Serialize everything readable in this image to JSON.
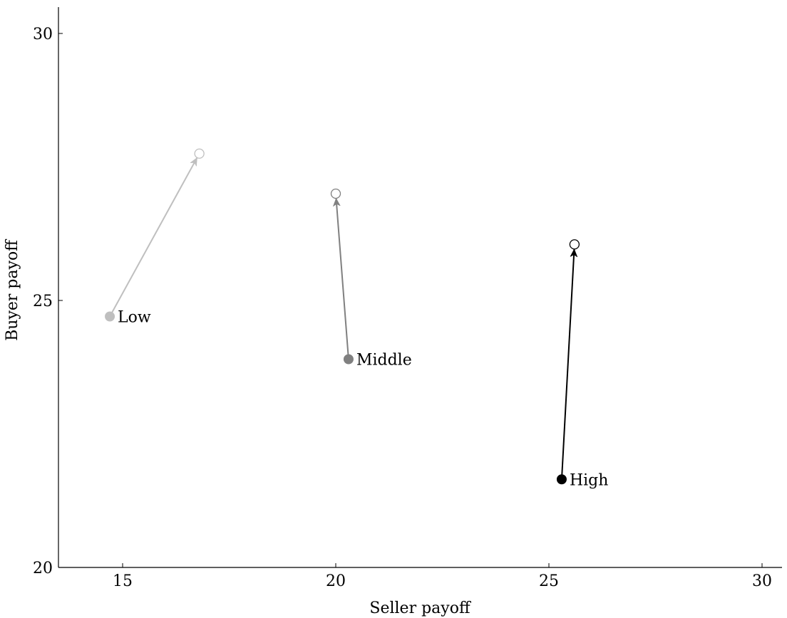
{
  "chart_data": {
    "type": "scatter",
    "xlabel": "Seller payoff",
    "ylabel": "Buyer payoff",
    "xlim": [
      13.5,
      30.5
    ],
    "ylim": [
      20,
      30.5
    ],
    "x_ticks": [
      15,
      20,
      25,
      30
    ],
    "y_ticks": [
      20,
      25,
      30
    ],
    "x_tick_labels": [
      "15",
      "20",
      "25",
      "30"
    ],
    "y_tick_labels": [
      "20",
      "25",
      "30"
    ],
    "grid": false,
    "series": [
      {
        "name": "Low",
        "color": "#bfbfbf",
        "start": {
          "x": 14.7,
          "y": 24.7
        },
        "end": {
          "x": 16.8,
          "y": 27.75
        }
      },
      {
        "name": "Middle",
        "color": "#808080",
        "start": {
          "x": 20.3,
          "y": 23.9
        },
        "end": {
          "x": 20.0,
          "y": 27.0
        }
      },
      {
        "name": "High",
        "color": "#000000",
        "start": {
          "x": 25.3,
          "y": 21.65
        },
        "end": {
          "x": 25.6,
          "y": 26.05
        }
      }
    ]
  }
}
